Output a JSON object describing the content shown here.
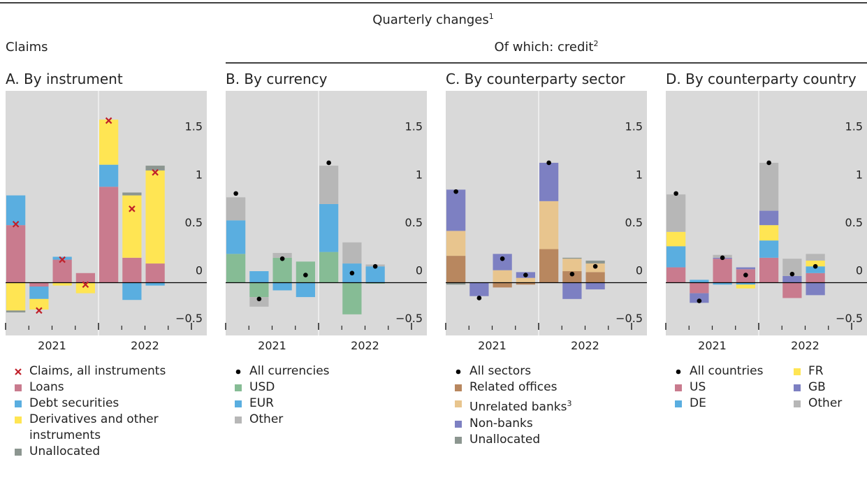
{
  "header": {
    "title": "Quarterly changes",
    "title_sup": "1",
    "left": "Claims",
    "right": "Of which: credit",
    "right_sup": "2"
  },
  "chart_data": [
    {
      "type": "bar",
      "title": "A. By instrument",
      "categories": [
        null,
        null,
        null,
        null,
        null,
        null,
        null,
        null
      ],
      "x_groups": [
        "2021",
        "2022"
      ],
      "ylim": [
        -0.55,
        2.0
      ],
      "yticks": [
        {
          "value": -0.5,
          "label": "−0.5"
        },
        0,
        0.5,
        1,
        1.5
      ],
      "marker": {
        "name": "Claims, all instruments",
        "symbol": "cross",
        "color": "#c0202a",
        "values": [
          0.61,
          -0.29,
          0.24,
          -0.02,
          1.69,
          0.77,
          1.15,
          null
        ]
      },
      "series": [
        {
          "name": "Loans",
          "color": "#c97b8e",
          "values": [
            0.6,
            -0.04,
            0.24,
            0.1,
            1.0,
            0.26,
            0.2,
            null
          ]
        },
        {
          "name": "Debt securities",
          "color": "#5aaee0",
          "values": [
            0.31,
            -0.13,
            0.03,
            0,
            0.23,
            -0.18,
            -0.03,
            null
          ]
        },
        {
          "name": "Derivatives and other instruments",
          "color": "#ffe553",
          "values": [
            -0.29,
            -0.11,
            -0.03,
            -0.11,
            0.47,
            0.65,
            0.97,
            null
          ]
        },
        {
          "name": "Unallocated",
          "color": "#8c9690",
          "values": [
            -0.02,
            0,
            0,
            0,
            0,
            0.03,
            0.05,
            null
          ]
        }
      ]
    },
    {
      "type": "bar",
      "title": "B. By currency",
      "categories": [
        null,
        null,
        null,
        null,
        null,
        null,
        null,
        null
      ],
      "x_groups": [
        "2021",
        "2022"
      ],
      "ylim": [
        -0.55,
        2.0
      ],
      "yticks": [
        {
          "value": -0.5,
          "label": "−0.5"
        },
        0,
        0.5,
        1,
        1.5
      ],
      "marker": {
        "name": "All currencies",
        "symbol": "dot",
        "color": "#000000",
        "values": [
          0.93,
          -0.17,
          0.25,
          0.08,
          1.25,
          0.1,
          0.17,
          null
        ]
      },
      "series": [
        {
          "name": "USD",
          "color": "#86bc95",
          "values": [
            0.3,
            -0.15,
            0.26,
            0.22,
            0.32,
            -0.33,
            -0.01,
            null
          ]
        },
        {
          "name": "EUR",
          "color": "#5aaee0",
          "values": [
            0.35,
            0.12,
            -0.08,
            -0.15,
            0.5,
            0.2,
            0.17,
            null
          ]
        },
        {
          "name": "Other",
          "color": "#b7b7b7",
          "values": [
            0.24,
            -0.1,
            0.05,
            0,
            0.4,
            0.22,
            0.02,
            null
          ]
        }
      ]
    },
    {
      "type": "bar",
      "title": "C. By counterparty sector",
      "categories": [
        null,
        null,
        null,
        null,
        null,
        null,
        null,
        null
      ],
      "x_groups": [
        "2021",
        "2022"
      ],
      "ylim": [
        -0.55,
        2.0
      ],
      "yticks": [
        {
          "value": -0.5,
          "label": "−0.5"
        },
        0,
        0.5,
        1,
        1.5
      ],
      "marker": {
        "name": "All sectors",
        "symbol": "dot",
        "color": "#000000",
        "values": [
          0.95,
          -0.16,
          0.25,
          0.08,
          1.25,
          0.09,
          0.17,
          null
        ]
      },
      "series": [
        {
          "name": "Related offices",
          "color": "#b8875f",
          "values": [
            0.28,
            0,
            -0.05,
            -0.02,
            0.35,
            0.12,
            0.11,
            null
          ]
        },
        {
          "name": "Unrelated banks",
          "name_sup": "3",
          "color": "#e8c58e",
          "values": [
            0.26,
            0,
            0.13,
            0.05,
            0.5,
            0.13,
            0.09,
            null
          ]
        },
        {
          "name": "Non-banks",
          "color": "#7d80c2",
          "values": [
            0.43,
            -0.14,
            0.17,
            0.06,
            0.4,
            -0.17,
            -0.07,
            null
          ]
        },
        {
          "name": "Unallocated",
          "color": "#8c9690",
          "values": [
            -0.02,
            0,
            0,
            0,
            0,
            0.01,
            0.03,
            null
          ]
        }
      ]
    },
    {
      "type": "bar",
      "title": "D. By counterparty country",
      "legend_columns": 2,
      "categories": [
        null,
        null,
        null,
        null,
        null,
        null,
        null,
        null
      ],
      "x_groups": [
        "2021",
        "2022"
      ],
      "ylim": [
        -0.55,
        2.0
      ],
      "yticks": [
        {
          "value": -0.5,
          "label": "−0.5"
        },
        0,
        0.5,
        1,
        1.5
      ],
      "marker": {
        "name": "All countries",
        "symbol": "dot",
        "color": "#000000",
        "values": [
          0.93,
          -0.19,
          0.26,
          0.08,
          1.25,
          0.09,
          0.17,
          null
        ]
      },
      "series": [
        {
          "name": "US",
          "color": "#c97b8e",
          "values": [
            0.16,
            -0.11,
            0.25,
            0.14,
            0.26,
            -0.16,
            0.1,
            null
          ]
        },
        {
          "name": "DE",
          "color": "#5aaee0",
          "values": [
            0.22,
            0.03,
            -0.02,
            -0.02,
            0.18,
            0,
            0.07,
            null
          ]
        },
        {
          "name": "FR",
          "color": "#ffe553",
          "values": [
            0.15,
            0,
            0,
            -0.04,
            0.16,
            0,
            0.06,
            null
          ]
        },
        {
          "name": "GB",
          "color": "#7d80c2",
          "values": [
            0,
            -0.1,
            0.01,
            0.02,
            0.15,
            0.07,
            -0.13,
            null
          ]
        },
        {
          "name": "Other",
          "color": "#b7b7b7",
          "values": [
            0.39,
            0,
            0.03,
            0,
            0.5,
            0.18,
            0.07,
            null
          ]
        }
      ]
    }
  ]
}
